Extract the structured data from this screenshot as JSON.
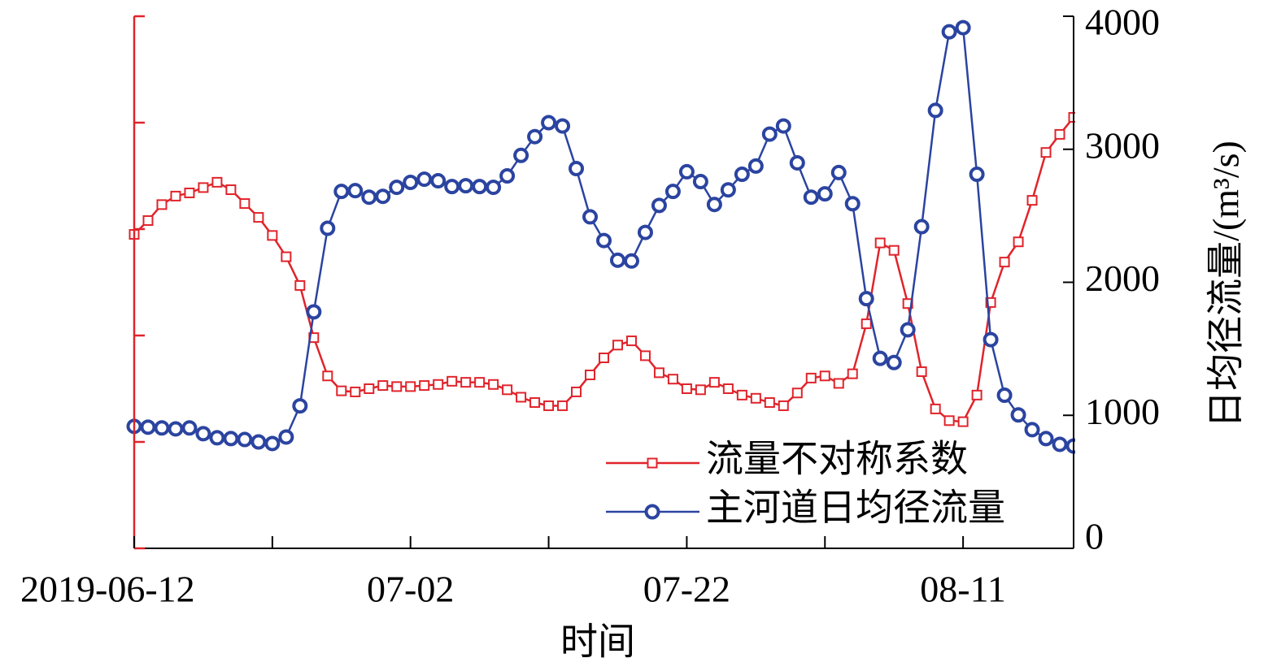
{
  "chart_data": {
    "type": "line",
    "x_label": "时间",
    "y2_label": "日均径流量/(m³/s)",
    "x": [
      0,
      1,
      2,
      3,
      4,
      5,
      6,
      7,
      8,
      9,
      10,
      11,
      12,
      13,
      14,
      15,
      16,
      17,
      18,
      19,
      20,
      21,
      22,
      23,
      24,
      25,
      26,
      27,
      28,
      29,
      30,
      31,
      32,
      33,
      34,
      35,
      36,
      37,
      38,
      39,
      40,
      41,
      42,
      43,
      44,
      45,
      46,
      47,
      48,
      49,
      50,
      51,
      52,
      53,
      54,
      55,
      56,
      57,
      58,
      59,
      60,
      61,
      62,
      63,
      64,
      65,
      66,
      67,
      68
    ],
    "xlim": [
      0,
      68
    ],
    "xticks": [
      {
        "value": 0,
        "label": "2019-06-12"
      },
      {
        "value": 20,
        "label": "07-02"
      },
      {
        "value": 40,
        "label": "07-22"
      },
      {
        "value": 60,
        "label": "08-11"
      }
    ],
    "xminor_ticks": [
      10,
      30,
      50
    ],
    "ylim": [
      0,
      5
    ],
    "yticks": [
      0,
      1,
      2,
      3,
      4,
      5
    ],
    "y_axis_color": "#e0242b",
    "y2lim": [
      0,
      4000
    ],
    "y2ticks": [
      0,
      1000,
      2000,
      3000,
      4000
    ],
    "series": [
      {
        "name": "流量不对称系数",
        "color": "#e0242b",
        "marker": "square",
        "axis": "y",
        "values": [
          2.95,
          3.08,
          3.23,
          3.31,
          3.34,
          3.39,
          3.44,
          3.37,
          3.24,
          3.11,
          2.94,
          2.74,
          2.47,
          1.98,
          1.62,
          1.48,
          1.47,
          1.5,
          1.53,
          1.52,
          1.52,
          1.53,
          1.54,
          1.57,
          1.56,
          1.56,
          1.54,
          1.49,
          1.42,
          1.37,
          1.34,
          1.34,
          1.47,
          1.63,
          1.79,
          1.91,
          1.95,
          1.81,
          1.65,
          1.59,
          1.5,
          1.49,
          1.56,
          1.5,
          1.44,
          1.41,
          1.37,
          1.34,
          1.46,
          1.6,
          1.62,
          1.55,
          1.64,
          2.11,
          2.87,
          2.8,
          2.3,
          1.66,
          1.31,
          1.2,
          1.19,
          1.44,
          2.31,
          2.69,
          2.88,
          3.27,
          3.72,
          3.89,
          4.05
        ]
      },
      {
        "name": "主河道日均径流量",
        "color": "#2b44a0",
        "marker": "circle",
        "axis": "y2",
        "values": [
          917,
          911,
          905,
          898,
          905,
          862,
          831,
          825,
          818,
          800,
          788,
          837,
          1071,
          1778,
          2406,
          2683,
          2689,
          2640,
          2646,
          2714,
          2751,
          2775,
          2763,
          2720,
          2726,
          2720,
          2714,
          2800,
          2954,
          3095,
          3200,
          3175,
          2855,
          2492,
          2314,
          2166,
          2160,
          2375,
          2578,
          2683,
          2831,
          2757,
          2585,
          2695,
          2812,
          2874,
          3114,
          3175,
          2898,
          2640,
          2665,
          2825,
          2591,
          1877,
          1428,
          1397,
          1643,
          2418,
          3292,
          3883,
          3914,
          2812,
          1569,
          1151,
          1003,
          892,
          825,
          782,
          769
        ]
      }
    ]
  }
}
